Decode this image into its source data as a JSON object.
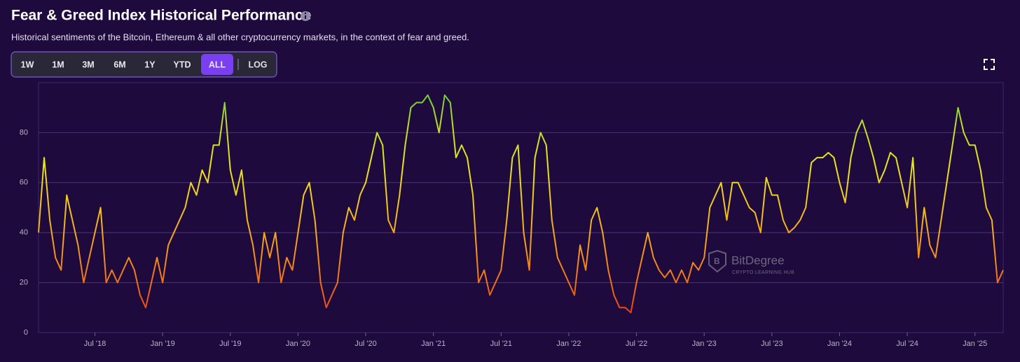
{
  "chart_data": {
    "type": "line",
    "title": "Fear & Greed Index Historical Performance",
    "subtitle": "Historical sentiments of the Bitcoin, Ethereum & all other cryptocurrency markets, in the context of fear and greed.",
    "controls": {
      "ranges": [
        "1W",
        "1M",
        "3M",
        "6M",
        "1Y",
        "YTD",
        "ALL"
      ],
      "active": "ALL",
      "scale_toggle": "LOG"
    },
    "watermark": {
      "brand": "BitDegree",
      "tagline": "CRYPTO LEARNING HUB"
    },
    "log_scale": false,
    "grid": true,
    "colors": [
      "#e3241b",
      "#ee6a16",
      "#f49a1a",
      "#f2c51c",
      "#e8e61d",
      "#b8df24",
      "#52c83a"
    ],
    "ylim": [
      0,
      100
    ],
    "yticks": [
      0,
      20,
      40,
      60,
      80
    ],
    "categories": [
      null,
      null,
      null,
      null,
      null,
      null,
      null,
      null,
      null,
      null,
      "Jul '18",
      null,
      null,
      null,
      null,
      null,
      null,
      null,
      null,
      null,
      null,
      null,
      "Jan '19",
      null,
      null,
      null,
      null,
      null,
      null,
      null,
      null,
      null,
      null,
      null,
      "Jul '19",
      null,
      null,
      null,
      null,
      null,
      null,
      null,
      null,
      null,
      null,
      null,
      "Jan '20",
      null,
      null,
      null,
      null,
      null,
      null,
      null,
      null,
      null,
      null,
      null,
      "Jul '20",
      null,
      null,
      null,
      null,
      null,
      null,
      null,
      null,
      null,
      null,
      null,
      "Jan '21",
      null,
      null,
      null,
      null,
      null,
      null,
      null,
      null,
      null,
      null,
      null,
      "Jul '21",
      null,
      null,
      null,
      null,
      null,
      null,
      null,
      null,
      null,
      null,
      null,
      "Jan '22",
      null,
      null,
      null,
      null,
      null,
      null,
      null,
      null,
      null,
      null,
      null,
      "Jul '22",
      null,
      null,
      null,
      null,
      null,
      null,
      null,
      null,
      null,
      null,
      null,
      "Jan '23",
      null,
      null,
      null,
      null,
      null,
      null,
      null,
      null,
      null,
      null,
      null,
      "Jul '23",
      null,
      null,
      null,
      null,
      null,
      null,
      null,
      null,
      null,
      null,
      null,
      "Jan '24",
      null,
      null,
      null,
      null,
      null,
      null,
      null,
      null,
      null,
      null,
      null,
      "Jul '24",
      null,
      null,
      null,
      null,
      null,
      null,
      null,
      null,
      null,
      null,
      null,
      "Jan '25",
      null,
      null,
      null,
      null,
      null
    ],
    "values": [
      40,
      70,
      45,
      30,
      25,
      55,
      45,
      35,
      20,
      30,
      40,
      50,
      20,
      25,
      20,
      25,
      30,
      25,
      15,
      10,
      20,
      30,
      20,
      35,
      40,
      45,
      50,
      60,
      55,
      65,
      60,
      75,
      75,
      92,
      65,
      55,
      65,
      45,
      35,
      20,
      40,
      30,
      40,
      20,
      30,
      25,
      40,
      55,
      60,
      45,
      20,
      10,
      15,
      20,
      40,
      50,
      45,
      55,
      60,
      70,
      80,
      75,
      45,
      40,
      55,
      75,
      90,
      92,
      92,
      95,
      90,
      80,
      95,
      92,
      70,
      75,
      70,
      55,
      20,
      25,
      15,
      20,
      25,
      45,
      70,
      75,
      40,
      25,
      70,
      80,
      75,
      45,
      30,
      25,
      20,
      15,
      35,
      25,
      45,
      50,
      40,
      25,
      15,
      10,
      10,
      8,
      20,
      30,
      40,
      30,
      25,
      22,
      25,
      20,
      25,
      20,
      28,
      25,
      30,
      50,
      55,
      60,
      45,
      60,
      60,
      55,
      50,
      48,
      40,
      62,
      55,
      55,
      45,
      40,
      42,
      45,
      50,
      68,
      70,
      70,
      72,
      70,
      60,
      52,
      70,
      80,
      85,
      78,
      70,
      60,
      65,
      72,
      70,
      60,
      50,
      70,
      30,
      50,
      35,
      30,
      45,
      60,
      75,
      90,
      80,
      75,
      75,
      65,
      50,
      45,
      20,
      25
    ]
  }
}
